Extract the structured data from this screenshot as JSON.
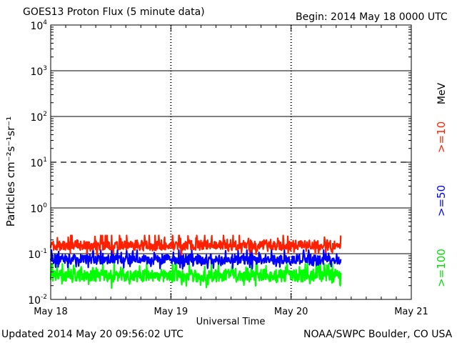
{
  "header": {
    "title": "GOES13 Proton Flux (5 minute data)",
    "begin": "Begin: 2014 May 18 0000 UTC"
  },
  "footer": {
    "updated": "Updated 2014 May 20 09:56:02 UTC",
    "source": "NOAA/SWPC Boulder, CO USA"
  },
  "chart_data": {
    "type": "line",
    "title": "GOES13 Proton Flux (5 minute data)",
    "xlabel": "Universal Time",
    "ylabel": "Particles cm⁻²s⁻¹sr⁻¹",
    "y_scale": "log",
    "ylim": [
      0.01,
      10000
    ],
    "y_ticks": [
      {
        "base": "10",
        "exp": "4"
      },
      {
        "base": "10",
        "exp": "3"
      },
      {
        "base": "10",
        "exp": "2"
      },
      {
        "base": "10",
        "exp": "1"
      },
      {
        "base": "10",
        "exp": "0"
      },
      {
        "base": "10",
        "exp": "-1"
      },
      {
        "base": "10",
        "exp": "-2"
      }
    ],
    "x_tick_labels": [
      "May 18",
      "May 19",
      "May 20",
      "May 21"
    ],
    "xlim": [
      "2014-05-18 00:00",
      "2014-05-21 00:00"
    ],
    "data_end": "2014-05-20 09:55",
    "units_label": "MeV",
    "grid": {
      "solid_lines_at": [
        1000,
        100,
        1,
        0.1
      ],
      "dashed_line_at": 10
    },
    "series": [
      {
        "name": ">=10",
        "color": "#ff2000",
        "typical_range": [
          0.08,
          0.25
        ]
      },
      {
        "name": ">=50",
        "color": "#0000ff",
        "typical_range": [
          0.04,
          0.12
        ]
      },
      {
        "name": ">=100",
        "color": "#00ff00",
        "typical_range": [
          0.015,
          0.06
        ]
      }
    ]
  }
}
